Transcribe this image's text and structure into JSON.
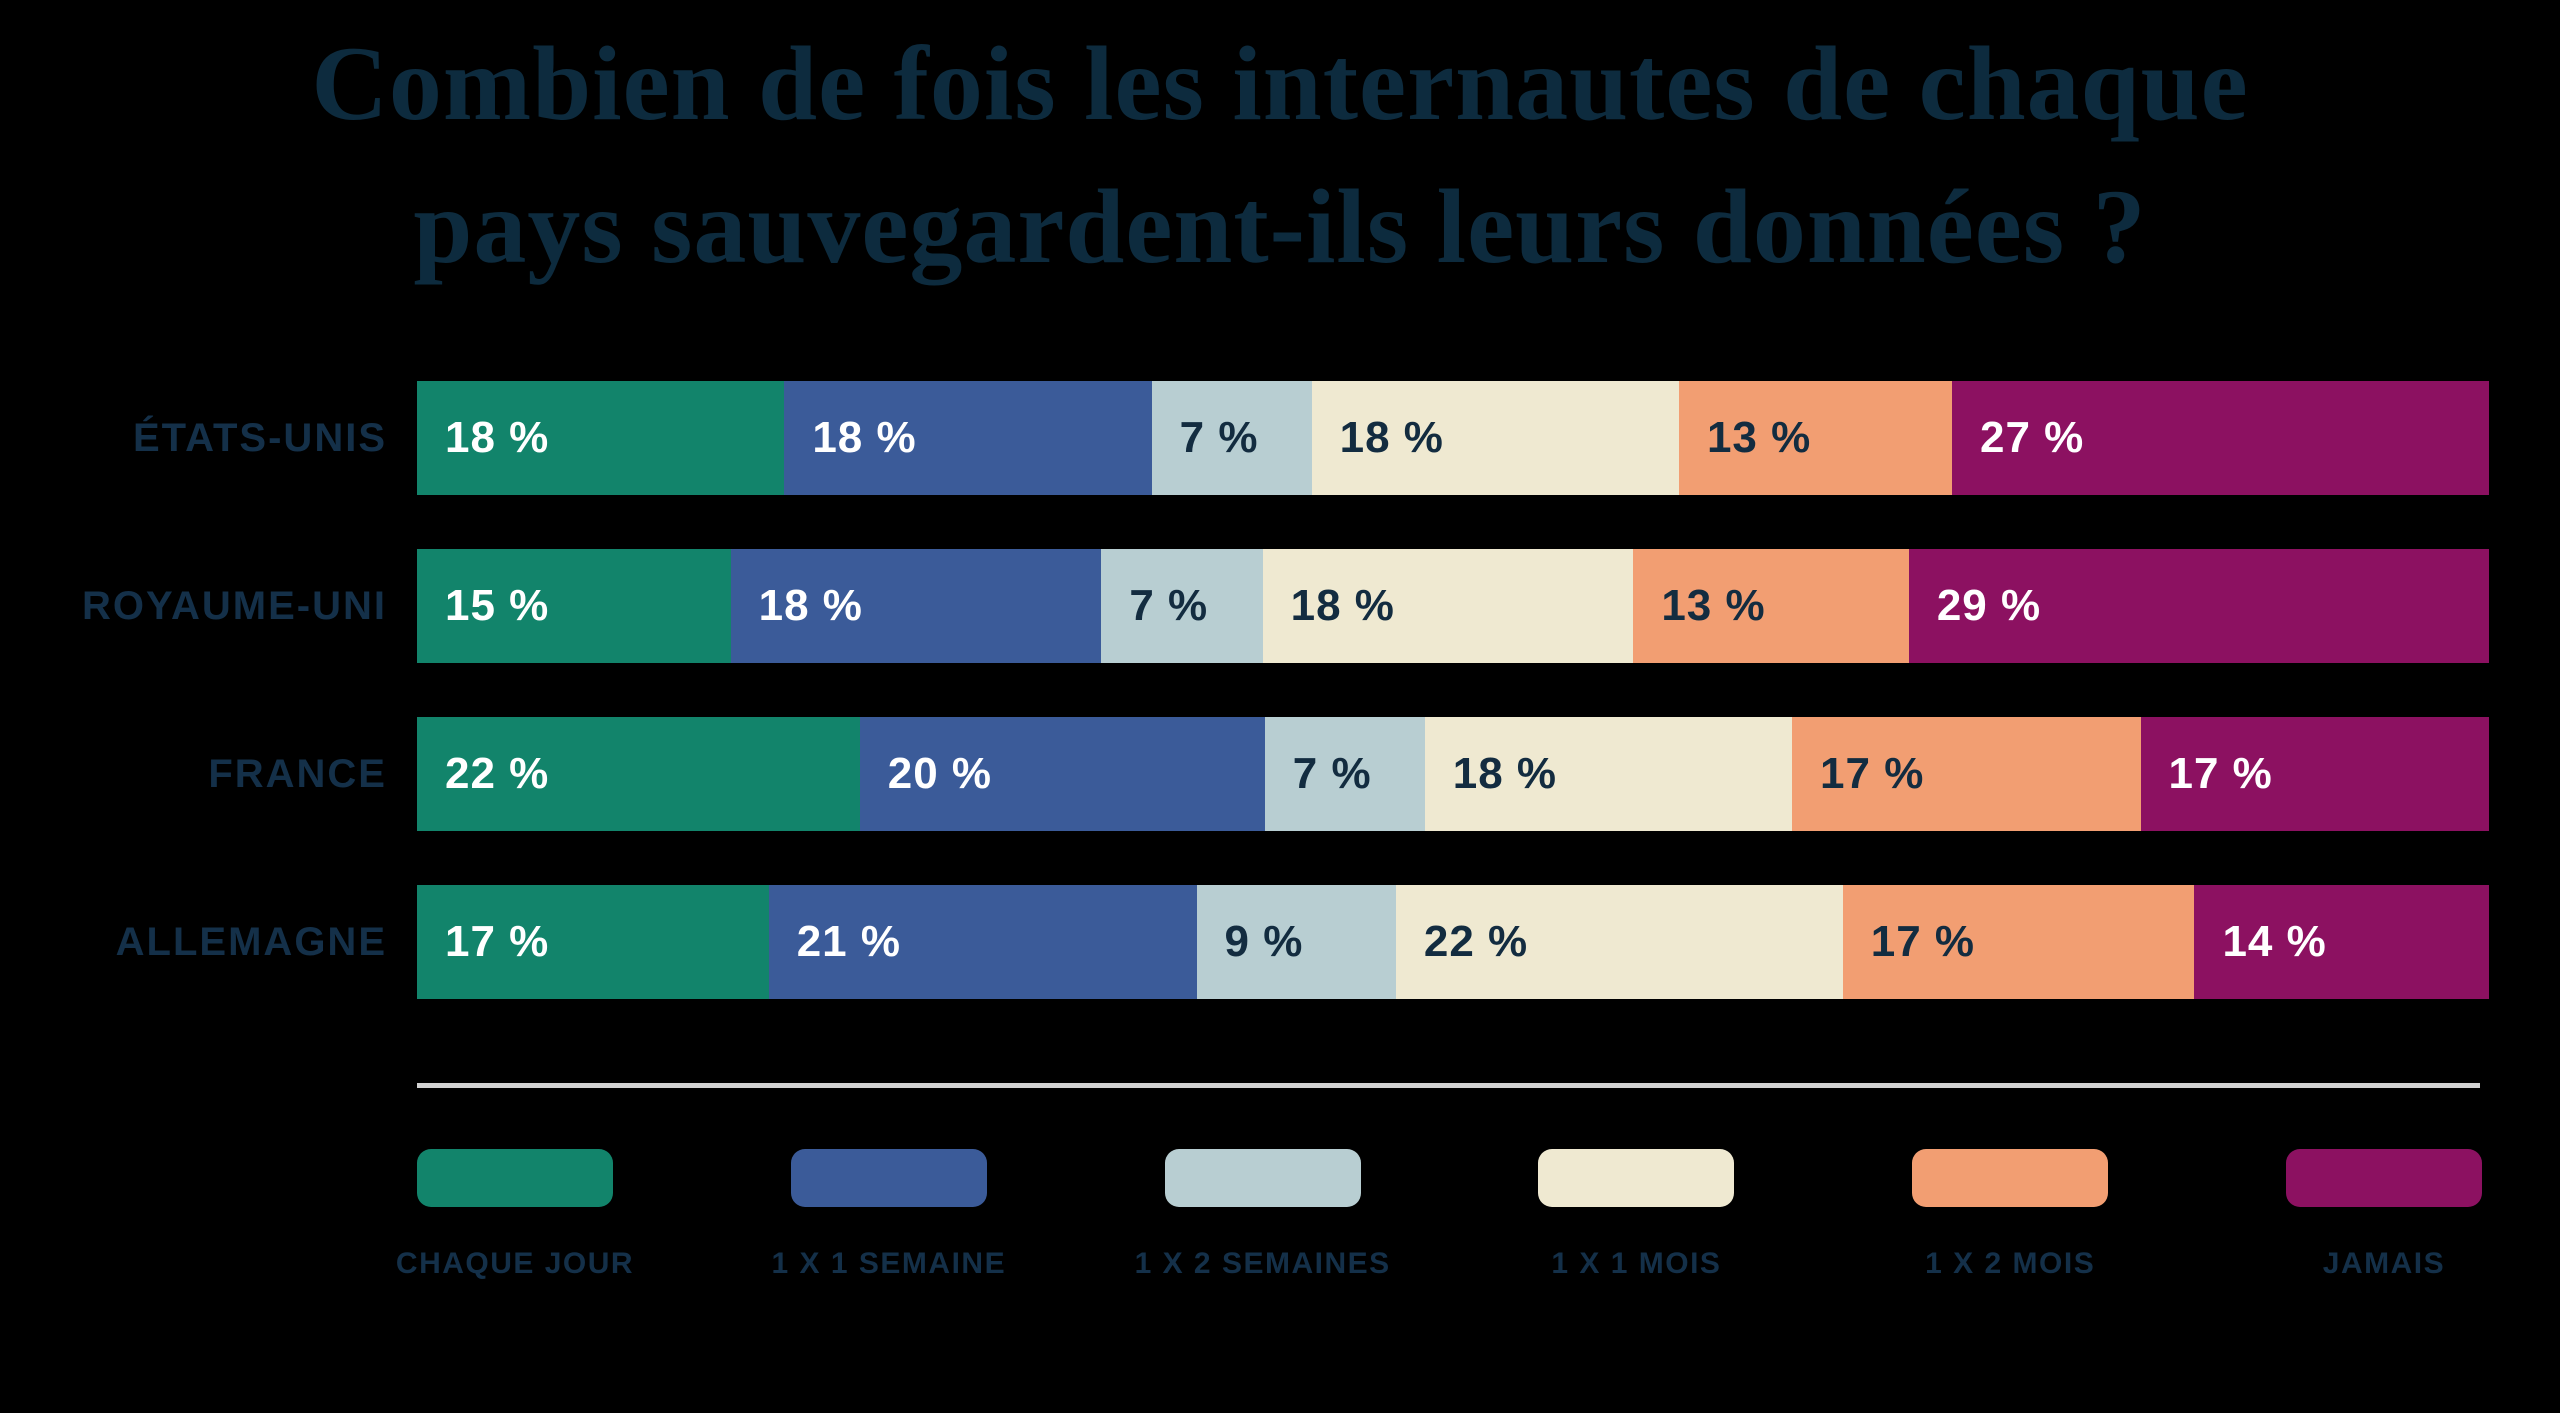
{
  "title": {
    "line1": "Combien de fois les internautes de chaque",
    "line2": "pays sauvegardent-ils leurs données ?"
  },
  "colors": {
    "background": "#000000",
    "title_text": "#0D2B3E",
    "label_text": "#143049",
    "divider": "#D2D2D2"
  },
  "chart_data": {
    "type": "bar",
    "orientation": "horizontal",
    "stacked": true,
    "grid": false,
    "legend_position": "bottom",
    "title": "Combien de fois les internautes de chaque pays sauvegardent-ils leurs données ?",
    "value_suffix": " %",
    "categories": [
      "ÉTATS-UNIS",
      "ROYAUME-UNI",
      "FRANCE",
      "ALLEMAGNE"
    ],
    "series": [
      {
        "name": "CHAQUE JOUR",
        "color": "#12846B",
        "value_text_color": "#FFFFFF",
        "values": [
          18,
          15,
          22,
          17
        ]
      },
      {
        "name": "1 X 1 SEMAINE",
        "color": "#3B5B99",
        "value_text_color": "#FFFFFF",
        "values": [
          18,
          18,
          20,
          21
        ]
      },
      {
        "name": "1 X 2 SEMAINES",
        "color": "#B8CED2",
        "value_text_color": "#132C40",
        "values": [
          7,
          7,
          7,
          9
        ]
      },
      {
        "name": "1 X 1 MOIS",
        "color": "#EFE9D1",
        "value_text_color": "#132C40",
        "values": [
          18,
          18,
          18,
          22
        ]
      },
      {
        "name": "1 X 2 MOIS",
        "color": "#F29E72",
        "value_text_color": "#132C40",
        "values": [
          13,
          13,
          17,
          17
        ]
      },
      {
        "name": "JAMAIS",
        "color": "#8C1161",
        "value_text_color": "#FFFFFF",
        "values": [
          27,
          29,
          17,
          14
        ]
      }
    ]
  }
}
